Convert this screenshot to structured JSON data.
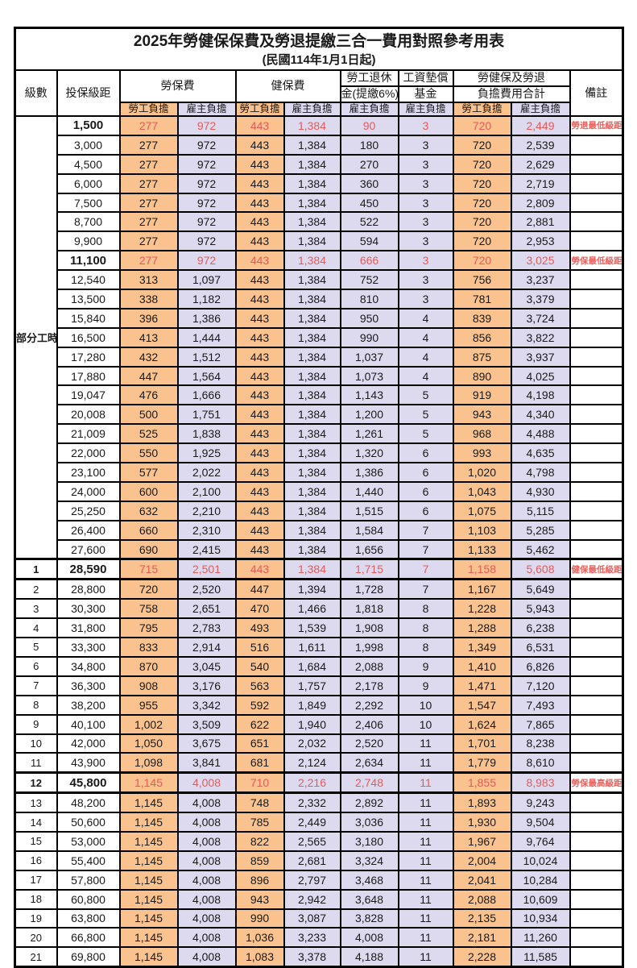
{
  "title": "2025年勞健保保費及勞退提繳三合一費用對照參考用表",
  "subtitle": "(民國114年1月1日起)",
  "columns": {
    "level": "級數",
    "salary": "投保級距",
    "labor": "勞保費",
    "health": "健保費",
    "pension_line1": "勞工退休",
    "pension_line2": "金(提繳6%)",
    "wage_fund_line1": "工資墊償",
    "wage_fund_line2": "基金",
    "total_line1": "勞健保及勞退",
    "total_line2": "負擔費用合計",
    "remark": "備註",
    "employee": "勞工負擔",
    "employer": "雇主負擔"
  },
  "part_time_label": "部分工時",
  "part_time_rowspan": 23,
  "colors": {
    "employee_bg": "#F9C28F",
    "employer_bg": "#DDDAEF",
    "highlight_text": "#E25B5B",
    "remark_text": "#E8605C",
    "border": "#000000"
  },
  "rows": [
    {
      "level": null,
      "salary": "1,500",
      "values": [
        "277",
        "972",
        "443",
        "1,384",
        "90",
        "3",
        "720",
        "2,449"
      ],
      "remark": "勞退最低級距",
      "highlight": true
    },
    {
      "level": null,
      "salary": "3,000",
      "values": [
        "277",
        "972",
        "443",
        "1,384",
        "180",
        "3",
        "720",
        "2,539"
      ],
      "remark": "",
      "highlight": false
    },
    {
      "level": null,
      "salary": "4,500",
      "values": [
        "277",
        "972",
        "443",
        "1,384",
        "270",
        "3",
        "720",
        "2,629"
      ],
      "remark": "",
      "highlight": false
    },
    {
      "level": null,
      "salary": "6,000",
      "values": [
        "277",
        "972",
        "443",
        "1,384",
        "360",
        "3",
        "720",
        "2,719"
      ],
      "remark": "",
      "highlight": false
    },
    {
      "level": null,
      "salary": "7,500",
      "values": [
        "277",
        "972",
        "443",
        "1,384",
        "450",
        "3",
        "720",
        "2,809"
      ],
      "remark": "",
      "highlight": false
    },
    {
      "level": null,
      "salary": "8,700",
      "values": [
        "277",
        "972",
        "443",
        "1,384",
        "522",
        "3",
        "720",
        "2,881"
      ],
      "remark": "",
      "highlight": false
    },
    {
      "level": null,
      "salary": "9,900",
      "values": [
        "277",
        "972",
        "443",
        "1,384",
        "594",
        "3",
        "720",
        "2,953"
      ],
      "remark": "",
      "highlight": false
    },
    {
      "level": null,
      "salary": "11,100",
      "values": [
        "277",
        "972",
        "443",
        "1,384",
        "666",
        "3",
        "720",
        "3,025"
      ],
      "remark": "勞保最低級距",
      "highlight": true
    },
    {
      "level": null,
      "salary": "12,540",
      "values": [
        "313",
        "1,097",
        "443",
        "1,384",
        "752",
        "3",
        "756",
        "3,237"
      ],
      "remark": "",
      "highlight": false
    },
    {
      "level": null,
      "salary": "13,500",
      "values": [
        "338",
        "1,182",
        "443",
        "1,384",
        "810",
        "3",
        "781",
        "3,379"
      ],
      "remark": "",
      "highlight": false
    },
    {
      "level": null,
      "salary": "15,840",
      "values": [
        "396",
        "1,386",
        "443",
        "1,384",
        "950",
        "4",
        "839",
        "3,724"
      ],
      "remark": "",
      "highlight": false
    },
    {
      "level": null,
      "salary": "16,500",
      "values": [
        "413",
        "1,444",
        "443",
        "1,384",
        "990",
        "4",
        "856",
        "3,822"
      ],
      "remark": "",
      "highlight": false
    },
    {
      "level": null,
      "salary": "17,280",
      "values": [
        "432",
        "1,512",
        "443",
        "1,384",
        "1,037",
        "4",
        "875",
        "3,937"
      ],
      "remark": "",
      "highlight": false
    },
    {
      "level": null,
      "salary": "17,880",
      "values": [
        "447",
        "1,564",
        "443",
        "1,384",
        "1,073",
        "4",
        "890",
        "4,025"
      ],
      "remark": "",
      "highlight": false
    },
    {
      "level": null,
      "salary": "19,047",
      "values": [
        "476",
        "1,666",
        "443",
        "1,384",
        "1,143",
        "5",
        "919",
        "4,198"
      ],
      "remark": "",
      "highlight": false
    },
    {
      "level": null,
      "salary": "20,008",
      "values": [
        "500",
        "1,751",
        "443",
        "1,384",
        "1,200",
        "5",
        "943",
        "4,340"
      ],
      "remark": "",
      "highlight": false
    },
    {
      "level": null,
      "salary": "21,009",
      "values": [
        "525",
        "1,838",
        "443",
        "1,384",
        "1,261",
        "5",
        "968",
        "4,488"
      ],
      "remark": "",
      "highlight": false
    },
    {
      "level": null,
      "salary": "22,000",
      "values": [
        "550",
        "1,925",
        "443",
        "1,384",
        "1,320",
        "6",
        "993",
        "4,635"
      ],
      "remark": "",
      "highlight": false
    },
    {
      "level": null,
      "salary": "23,100",
      "values": [
        "577",
        "2,022",
        "443",
        "1,384",
        "1,386",
        "6",
        "1,020",
        "4,798"
      ],
      "remark": "",
      "highlight": false
    },
    {
      "level": null,
      "salary": "24,000",
      "values": [
        "600",
        "2,100",
        "443",
        "1,384",
        "1,440",
        "6",
        "1,043",
        "4,930"
      ],
      "remark": "",
      "highlight": false
    },
    {
      "level": null,
      "salary": "25,250",
      "values": [
        "632",
        "2,210",
        "443",
        "1,384",
        "1,515",
        "6",
        "1,075",
        "5,115"
      ],
      "remark": "",
      "highlight": false
    },
    {
      "level": null,
      "salary": "26,400",
      "values": [
        "660",
        "2,310",
        "443",
        "1,384",
        "1,584",
        "7",
        "1,103",
        "5,285"
      ],
      "remark": "",
      "highlight": false
    },
    {
      "level": null,
      "salary": "27,600",
      "values": [
        "690",
        "2,415",
        "443",
        "1,384",
        "1,656",
        "7",
        "1,133",
        "5,462"
      ],
      "remark": "",
      "highlight": false
    },
    {
      "level": "1",
      "salary": "28,590",
      "values": [
        "715",
        "2,501",
        "443",
        "1,384",
        "1,715",
        "7",
        "1,158",
        "5,608"
      ],
      "remark": "健保最低級距",
      "highlight": true
    },
    {
      "level": "2",
      "salary": "28,800",
      "values": [
        "720",
        "2,520",
        "447",
        "1,394",
        "1,728",
        "7",
        "1,167",
        "5,649"
      ],
      "remark": "",
      "highlight": false
    },
    {
      "level": "3",
      "salary": "30,300",
      "values": [
        "758",
        "2,651",
        "470",
        "1,466",
        "1,818",
        "8",
        "1,228",
        "5,943"
      ],
      "remark": "",
      "highlight": false
    },
    {
      "level": "4",
      "salary": "31,800",
      "values": [
        "795",
        "2,783",
        "493",
        "1,539",
        "1,908",
        "8",
        "1,288",
        "6,238"
      ],
      "remark": "",
      "highlight": false
    },
    {
      "level": "5",
      "salary": "33,300",
      "values": [
        "833",
        "2,914",
        "516",
        "1,611",
        "1,998",
        "8",
        "1,349",
        "6,531"
      ],
      "remark": "",
      "highlight": false
    },
    {
      "level": "6",
      "salary": "34,800",
      "values": [
        "870",
        "3,045",
        "540",
        "1,684",
        "2,088",
        "9",
        "1,410",
        "6,826"
      ],
      "remark": "",
      "highlight": false
    },
    {
      "level": "7",
      "salary": "36,300",
      "values": [
        "908",
        "3,176",
        "563",
        "1,757",
        "2,178",
        "9",
        "1,471",
        "7,120"
      ],
      "remark": "",
      "highlight": false
    },
    {
      "level": "8",
      "salary": "38,200",
      "values": [
        "955",
        "3,342",
        "592",
        "1,849",
        "2,292",
        "10",
        "1,547",
        "7,493"
      ],
      "remark": "",
      "highlight": false
    },
    {
      "level": "9",
      "salary": "40,100",
      "values": [
        "1,002",
        "3,509",
        "622",
        "1,940",
        "2,406",
        "10",
        "1,624",
        "7,865"
      ],
      "remark": "",
      "highlight": false
    },
    {
      "level": "10",
      "salary": "42,000",
      "values": [
        "1,050",
        "3,675",
        "651",
        "2,032",
        "2,520",
        "11",
        "1,701",
        "8,238"
      ],
      "remark": "",
      "highlight": false
    },
    {
      "level": "11",
      "salary": "43,900",
      "values": [
        "1,098",
        "3,841",
        "681",
        "2,124",
        "2,634",
        "11",
        "1,779",
        "8,610"
      ],
      "remark": "",
      "highlight": false
    },
    {
      "level": "12",
      "salary": "45,800",
      "values": [
        "1,145",
        "4,008",
        "710",
        "2,216",
        "2,748",
        "11",
        "1,855",
        "8,983"
      ],
      "remark": "勞保最高級距",
      "highlight": true
    },
    {
      "level": "13",
      "salary": "48,200",
      "values": [
        "1,145",
        "4,008",
        "748",
        "2,332",
        "2,892",
        "11",
        "1,893",
        "9,243"
      ],
      "remark": "",
      "highlight": false
    },
    {
      "level": "14",
      "salary": "50,600",
      "values": [
        "1,145",
        "4,008",
        "785",
        "2,449",
        "3,036",
        "11",
        "1,930",
        "9,504"
      ],
      "remark": "",
      "highlight": false
    },
    {
      "level": "15",
      "salary": "53,000",
      "values": [
        "1,145",
        "4,008",
        "822",
        "2,565",
        "3,180",
        "11",
        "1,967",
        "9,764"
      ],
      "remark": "",
      "highlight": false
    },
    {
      "level": "16",
      "salary": "55,400",
      "values": [
        "1,145",
        "4,008",
        "859",
        "2,681",
        "3,324",
        "11",
        "2,004",
        "10,024"
      ],
      "remark": "",
      "highlight": false
    },
    {
      "level": "17",
      "salary": "57,800",
      "values": [
        "1,145",
        "4,008",
        "896",
        "2,797",
        "3,468",
        "11",
        "2,041",
        "10,284"
      ],
      "remark": "",
      "highlight": false
    },
    {
      "level": "18",
      "salary": "60,800",
      "values": [
        "1,145",
        "4,008",
        "943",
        "2,942",
        "3,648",
        "11",
        "2,088",
        "10,609"
      ],
      "remark": "",
      "highlight": false
    },
    {
      "level": "19",
      "salary": "63,800",
      "values": [
        "1,145",
        "4,008",
        "990",
        "3,087",
        "3,828",
        "11",
        "2,135",
        "10,934"
      ],
      "remark": "",
      "highlight": false
    },
    {
      "level": "20",
      "salary": "66,800",
      "values": [
        "1,145",
        "4,008",
        "1,036",
        "3,233",
        "4,008",
        "11",
        "2,181",
        "11,260"
      ],
      "remark": "",
      "highlight": false
    },
    {
      "level": "21",
      "salary": "69,800",
      "values": [
        "1,145",
        "4,008",
        "1,083",
        "3,378",
        "4,188",
        "11",
        "2,228",
        "11,585"
      ],
      "remark": "",
      "highlight": false
    }
  ]
}
